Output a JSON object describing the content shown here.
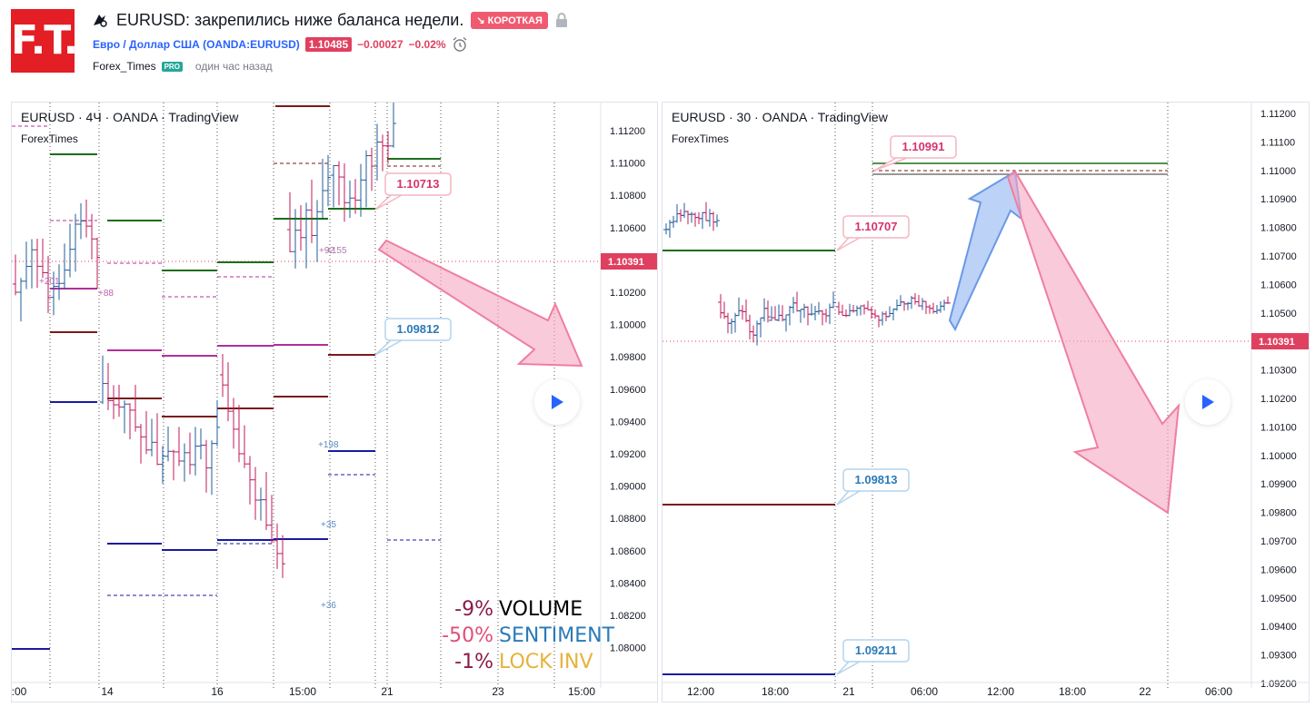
{
  "header": {
    "logo_text": "F.T.",
    "idea_icon": "idea-icon",
    "title": "EURUSD: закрепились ниже баланса недели.",
    "direction_badge": "↘ КОРОТКАЯ",
    "lock_icon": "lock-icon",
    "symbol_name": "Евро / Доллар США (OANDA:EURUSD)",
    "price": "1.10485",
    "change": "−0.00027",
    "change_pct": "−0.02%",
    "alarm_icon": "alarm-clock-icon",
    "author": "Forex_Times",
    "author_badge": "PRO",
    "published": "один час назад"
  },
  "colors": {
    "short_red": "#f05a70",
    "price_red": "#e0405f",
    "link_blue": "#2962ff",
    "pro_green": "#26a69a",
    "bull_candle": "#1f5c99",
    "bear_candle": "#c2185b",
    "level_green": "#1b6e1b",
    "level_maroon": "#7a1a1a",
    "level_navy": "#1a1aa0",
    "level_magenta": "#b0309a"
  },
  "chart_left": {
    "symbol_line": "EURUSD · 4Ч · OANDA · TradingView",
    "watermark": "ForexTimes",
    "price_axis": [
      "1.11200",
      "1.11000",
      "1.10800",
      "1.10600",
      "1.10400",
      "1.10200",
      "1.10000",
      "1.09800",
      "1.09600",
      "1.09400",
      "1.09200",
      "1.09000",
      "1.08800",
      "1.08600",
      "1.08400",
      "1.08200",
      "1.08000"
    ],
    "current_price": "1.10391",
    "time_axis": [
      ":00",
      "14",
      "16",
      "15:00",
      "21",
      "23",
      "15:00"
    ],
    "callouts": [
      "1.10713",
      "1.09812"
    ],
    "level_labels": [
      "+201",
      "+88",
      "+198",
      "+35",
      "+36",
      "+92",
      "+155"
    ],
    "play_icon": "play-icon",
    "stats": [
      {
        "pct": "-9%",
        "label": "VOLUME",
        "pct_color": "#8b1a4a",
        "label_color": "#000000"
      },
      {
        "pct": "-50%",
        "label": "SENTIMENT",
        "pct_color": "#e04f7a",
        "label_color": "#2a7ab8"
      },
      {
        "pct": "-1%",
        "label": "LOCK INV",
        "pct_color": "#8b1a4a",
        "label_color": "#e6b23a"
      }
    ]
  },
  "chart_right": {
    "symbol_line": "EURUSD · 30 · OANDA · TradingView",
    "watermark": "ForexTimes",
    "price_axis": [
      "1.11200",
      "1.11100",
      "1.11000",
      "1.10900",
      "1.10800",
      "1.10700",
      "1.10600",
      "1.10500",
      "1.10400",
      "1.10300",
      "1.10200",
      "1.10100",
      "1.10000",
      "1.09900",
      "1.09800",
      "1.09700",
      "1.09600",
      "1.09500",
      "1.09400",
      "1.09300",
      "1.09200"
    ],
    "current_price": "1.10391",
    "time_axis": [
      "12:00",
      "18:00",
      "21",
      "06:00",
      "12:00",
      "18:00",
      "22",
      "06:00"
    ],
    "callouts": [
      "1.10991",
      "1.10707",
      "1.09813",
      "1.09211"
    ],
    "play_icon": "play-icon"
  }
}
